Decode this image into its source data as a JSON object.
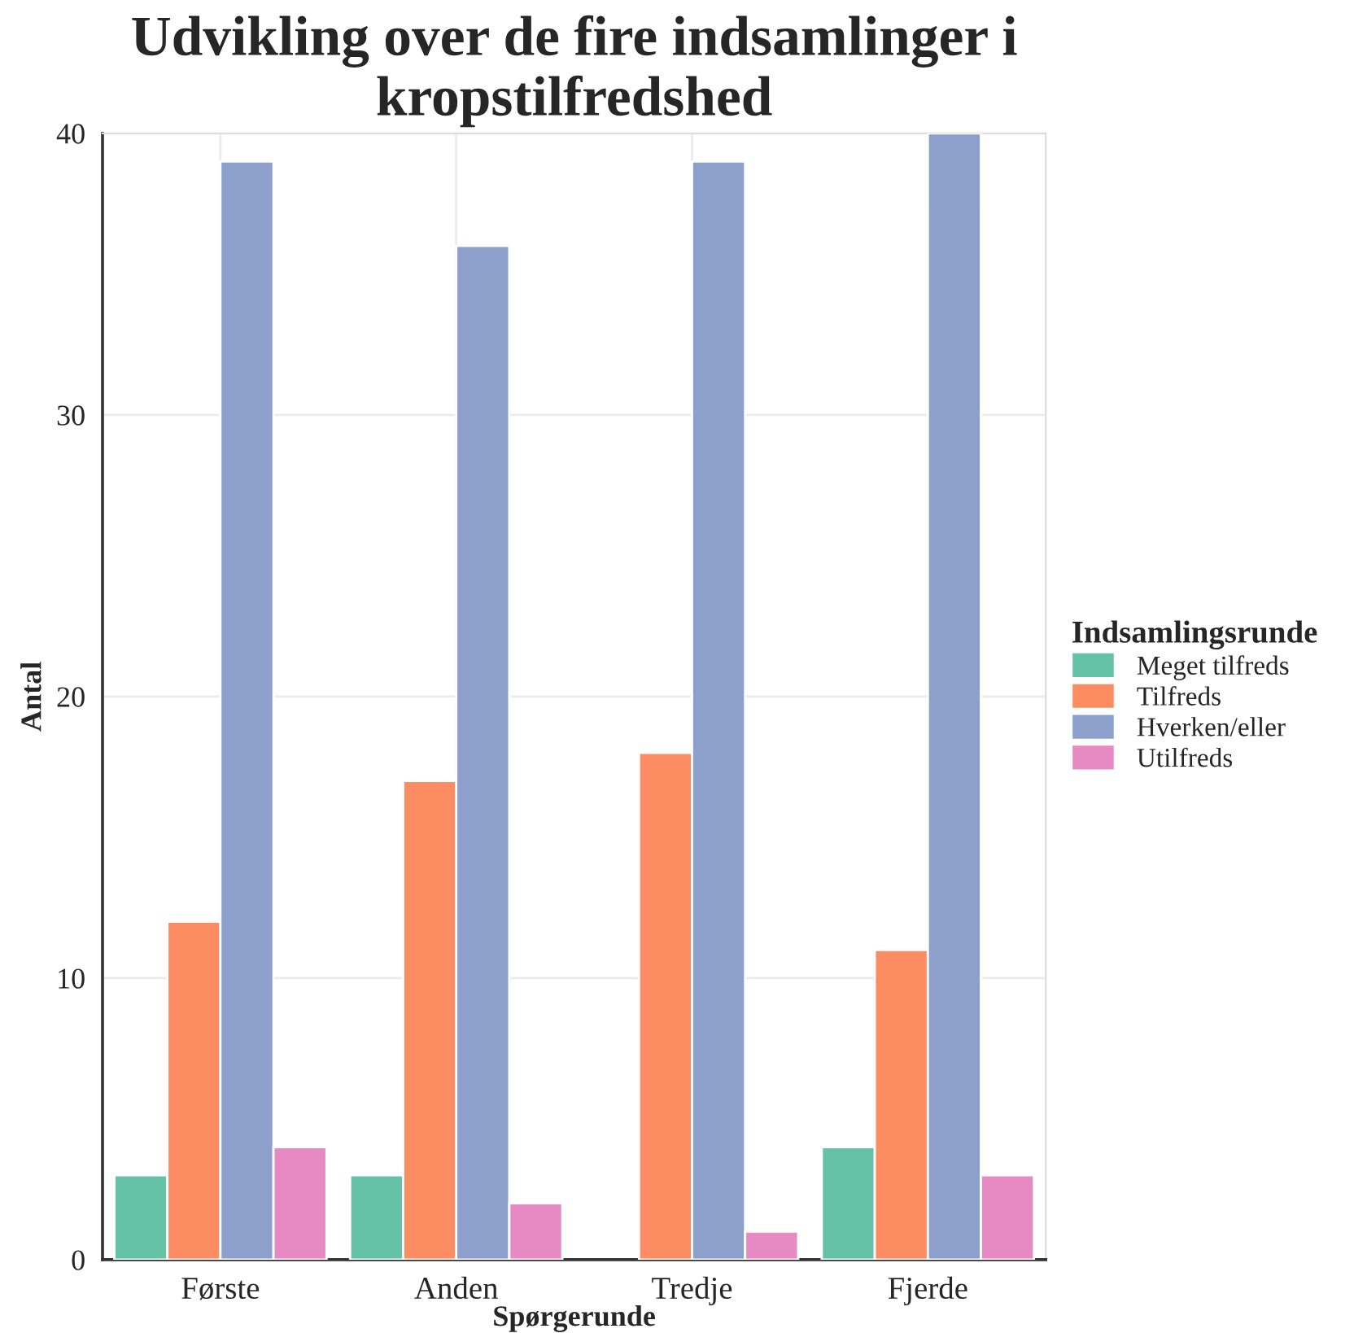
{
  "chart_data": {
    "type": "bar",
    "title": "Udvikling over de fire indsamlinger i\nkropstilfredshed",
    "xlabel": "Spørgerunde",
    "ylabel": "Antal",
    "legend_title": "Indsamlingsrunde",
    "categories": [
      "Første",
      "Anden",
      "Tredje",
      "Fjerde"
    ],
    "series": [
      {
        "name": "Meget tilfreds",
        "color": "#66c2a5",
        "values": [
          3,
          3,
          null,
          4
        ]
      },
      {
        "name": "Tilfreds",
        "color": "#fc8d62",
        "values": [
          12,
          17,
          18,
          11
        ]
      },
      {
        "name": "Hverken/eller",
        "color": "#8da0cb",
        "values": [
          39,
          36,
          39,
          40
        ]
      },
      {
        "name": "Utilfreds",
        "color": "#e78ac3",
        "values": [
          4,
          2,
          1,
          3
        ]
      }
    ],
    "ylim": [
      0,
      40
    ],
    "yticks": [
      0,
      10,
      20,
      30,
      40
    ],
    "grid": true,
    "legend": "right"
  }
}
